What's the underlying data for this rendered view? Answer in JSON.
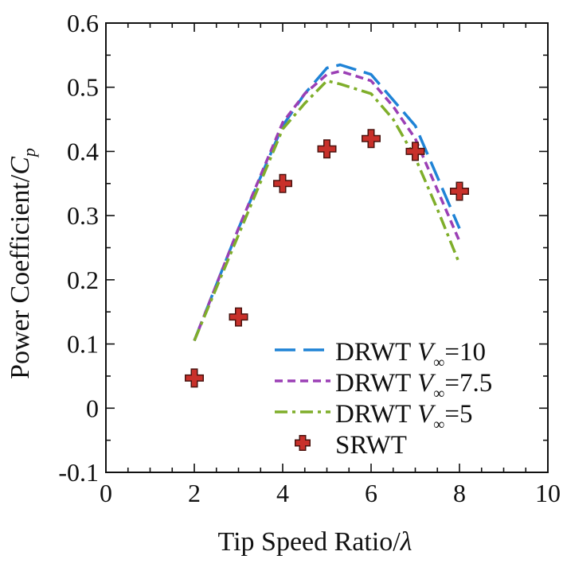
{
  "chart_data": {
    "type": "line",
    "title": "",
    "xlabel": "Tip Speed Ratio/",
    "xlabel_symbol": "λ",
    "ylabel": "Power Coefficient/",
    "ylabel_symbol": "C",
    "ylabel_subscript": "p",
    "xlim": [
      0,
      10
    ],
    "ylim": [
      -0.1,
      0.6
    ],
    "x_ticks": [
      0,
      2,
      4,
      6,
      8,
      10
    ],
    "x_tick_labels": [
      "0",
      "2",
      "4",
      "6",
      "8",
      "10"
    ],
    "x_minor_step": 0.5,
    "y_ticks": [
      -0.1,
      0,
      0.1,
      0.2,
      0.3,
      0.4,
      0.5,
      0.6
    ],
    "y_tick_labels": [
      "-0.1",
      "0",
      "0.1",
      "0.2",
      "0.3",
      "0.4",
      "0.5",
      "0.6"
    ],
    "y_minor_step": 0.05,
    "grid": false,
    "legend_position": "bottom-right",
    "series": [
      {
        "name": "DRWT V∞=10",
        "label_prefix": "DRWT ",
        "label_var": "V",
        "label_sub": "∞",
        "label_suffix": "=10",
        "style": "dashed",
        "color": "#1f83d6",
        "x": [
          2,
          3,
          4,
          4.5,
          5,
          5.3,
          6,
          6.5,
          7,
          7.5,
          8
        ],
        "y": [
          0.105,
          0.28,
          0.44,
          0.49,
          0.53,
          0.535,
          0.52,
          0.48,
          0.44,
          0.36,
          0.28
        ]
      },
      {
        "name": "DRWT V∞=7.5",
        "label_prefix": "DRWT ",
        "label_var": "V",
        "label_sub": "∞",
        "label_suffix": "=7.5",
        "style": "short-dashed",
        "color": "#9b3fb5",
        "x": [
          2,
          3,
          4,
          4.5,
          5,
          5.3,
          6,
          6.5,
          7,
          7.5,
          8
        ],
        "y": [
          0.105,
          0.28,
          0.445,
          0.49,
          0.52,
          0.525,
          0.51,
          0.47,
          0.42,
          0.34,
          0.26
        ]
      },
      {
        "name": "DRWT V∞=5",
        "label_prefix": "DRWT ",
        "label_var": "V",
        "label_sub": "∞",
        "label_suffix": "=5",
        "style": "dash-dot",
        "color": "#7fae2a",
        "x": [
          2,
          3,
          4,
          4.5,
          5,
          5.3,
          6,
          6.5,
          7,
          7.5,
          8
        ],
        "y": [
          0.105,
          0.27,
          0.435,
          0.475,
          0.51,
          0.505,
          0.49,
          0.45,
          0.39,
          0.31,
          0.225
        ]
      },
      {
        "name": "SRWT",
        "label_prefix": "SRWT",
        "label_var": "",
        "label_sub": "",
        "label_suffix": "",
        "style": "marker-plus",
        "color": "#c8302a",
        "x": [
          2,
          3,
          4,
          5,
          6,
          7,
          8
        ],
        "y": [
          0.047,
          0.142,
          0.35,
          0.404,
          0.42,
          0.4,
          0.338
        ]
      }
    ]
  }
}
